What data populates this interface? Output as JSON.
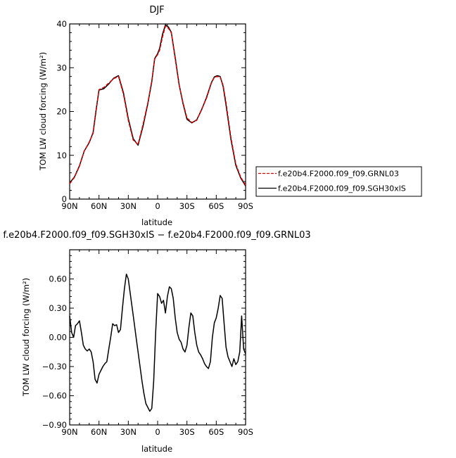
{
  "chart_data": [
    {
      "type": "line",
      "title": "DJF",
      "xlabel": "latitude",
      "ylabel": "TOM LW cloud forcing (W/m²)",
      "xlim": [
        -90,
        90
      ],
      "ylim": [
        0,
        40
      ],
      "yticks": [
        0,
        10,
        20,
        30,
        40
      ],
      "ytick_labels": [
        "0",
        "10",
        "20",
        "30",
        "40"
      ],
      "xticks": [
        -90,
        -60,
        -30,
        0,
        30,
        60,
        90
      ],
      "xtick_labels": [
        "90N",
        "60N",
        "30N",
        "0",
        "30S",
        "60S",
        "90S"
      ],
      "legend_position": "right",
      "series": [
        {
          "name": "f.e20b4.F2000.f09_f09.GRNL03",
          "color": "#e00000",
          "dash": "dashed",
          "x": [
            -90,
            -85,
            -80,
            -75,
            -70,
            -66,
            -63,
            -60,
            -55,
            -50,
            -45,
            -40,
            -35,
            -30,
            -25,
            -20,
            -15,
            -10,
            -6,
            -3,
            0,
            2,
            5,
            8,
            11,
            14,
            18,
            22,
            26,
            30,
            35,
            40,
            45,
            50,
            55,
            58,
            61,
            64,
            67,
            70,
            75,
            80,
            85,
            90
          ],
          "y": [
            3.5,
            5,
            7.5,
            11,
            13,
            15,
            20,
            25,
            25.5,
            26.5,
            27.5,
            28,
            24,
            18,
            13.5,
            12.5,
            17,
            22,
            27,
            32,
            33,
            34,
            37,
            39.5,
            39,
            38,
            32,
            26,
            22,
            18.5,
            17.5,
            18,
            20.5,
            23,
            26.5,
            27.8,
            28,
            27.8,
            26,
            22,
            14,
            8,
            5,
            3.2
          ]
        },
        {
          "name": "f.e20b4.F2000.f09_f09.SGH30xlS",
          "color": "#000000",
          "dash": "solid",
          "x": [
            -90,
            -85,
            -80,
            -75,
            -70,
            -66,
            -63,
            -60,
            -55,
            -50,
            -45,
            -40,
            -35,
            -30,
            -25,
            -20,
            -15,
            -10,
            -6,
            -3,
            0,
            2,
            5,
            8,
            11,
            14,
            18,
            22,
            26,
            30,
            35,
            40,
            45,
            50,
            55,
            58,
            61,
            64,
            67,
            70,
            75,
            80,
            85,
            90
          ],
          "y": [
            3.7,
            5.1,
            7.6,
            11,
            12.9,
            15.2,
            20.3,
            24.9,
            25.2,
            26.3,
            27.6,
            28.2,
            24.3,
            18.4,
            13.8,
            12.3,
            16.6,
            21.8,
            26.8,
            32.1,
            33.2,
            34.4,
            37.6,
            39.8,
            39.3,
            38.1,
            32.3,
            26.1,
            21.8,
            18.2,
            17.4,
            18.1,
            20.4,
            23.2,
            26.6,
            27.9,
            28.2,
            28,
            25.7,
            21.5,
            13.6,
            7.7,
            4.8,
            3
          ]
        }
      ]
    },
    {
      "type": "line",
      "title": "f.e20b4.F2000.f09_f09.SGH30xIS − f.e20b4.F2000.f09_f09.GRNL03",
      "xlabel": "latitude",
      "ylabel": "TOM LW cloud forcing (W/m²)",
      "xlim": [
        -90,
        90
      ],
      "ylim": [
        -0.9,
        0.9
      ],
      "yticks": [
        -0.9,
        -0.6,
        -0.3,
        0.0,
        0.3,
        0.6
      ],
      "ytick_labels": [
        "−0.90",
        "−0.60",
        "−0.30",
        "0.00",
        "0.30",
        "0.60"
      ],
      "xticks": [
        -90,
        -60,
        -30,
        0,
        30,
        60,
        90
      ],
      "xtick_labels": [
        "90N",
        "60N",
        "30N",
        "0",
        "30S",
        "60S",
        "90S"
      ],
      "series": [
        {
          "color": "#000000",
          "x": [
            -90,
            -88,
            -86,
            -84,
            -82,
            -80,
            -78,
            -76,
            -74,
            -72,
            -70,
            -68,
            -66,
            -64,
            -62,
            -60,
            -58,
            -56,
            -54,
            -52,
            -50,
            -48,
            -46,
            -44,
            -42,
            -40,
            -38,
            -36,
            -34,
            -32,
            -30,
            -28,
            -26,
            -24,
            -22,
            -20,
            -18,
            -16,
            -14,
            -12,
            -10,
            -8,
            -6,
            -4,
            -2,
            0,
            2,
            4,
            6,
            8,
            10,
            12,
            14,
            16,
            18,
            20,
            22,
            24,
            26,
            28,
            30,
            32,
            34,
            36,
            38,
            40,
            42,
            44,
            46,
            48,
            50,
            52,
            54,
            56,
            58,
            60,
            62,
            64,
            66,
            68,
            70,
            72,
            74,
            76,
            78,
            80,
            82,
            84,
            86,
            88,
            90
          ],
          "y": [
            0.22,
            0.05,
            0.0,
            0.12,
            0.14,
            0.17,
            0.05,
            -0.08,
            -0.12,
            -0.14,
            -0.12,
            -0.15,
            -0.25,
            -0.43,
            -0.47,
            -0.38,
            -0.34,
            -0.3,
            -0.27,
            -0.25,
            -0.12,
            0.0,
            0.14,
            0.12,
            0.13,
            0.05,
            0.08,
            0.3,
            0.5,
            0.65,
            0.6,
            0.45,
            0.3,
            0.15,
            0.0,
            -0.15,
            -0.3,
            -0.45,
            -0.58,
            -0.68,
            -0.72,
            -0.76,
            -0.73,
            -0.45,
            0.05,
            0.45,
            0.42,
            0.35,
            0.38,
            0.25,
            0.42,
            0.52,
            0.5,
            0.4,
            0.2,
            0.05,
            -0.02,
            -0.05,
            -0.12,
            -0.15,
            -0.08,
            0.1,
            0.25,
            0.22,
            0.05,
            -0.08,
            -0.15,
            -0.18,
            -0.22,
            -0.27,
            -0.3,
            -0.32,
            -0.25,
            0.0,
            0.15,
            0.2,
            0.3,
            0.43,
            0.4,
            0.15,
            -0.1,
            -0.2,
            -0.25,
            -0.3,
            -0.22,
            -0.28,
            -0.25,
            -0.15,
            0.22,
            -0.12,
            -0.17
          ]
        }
      ]
    }
  ]
}
